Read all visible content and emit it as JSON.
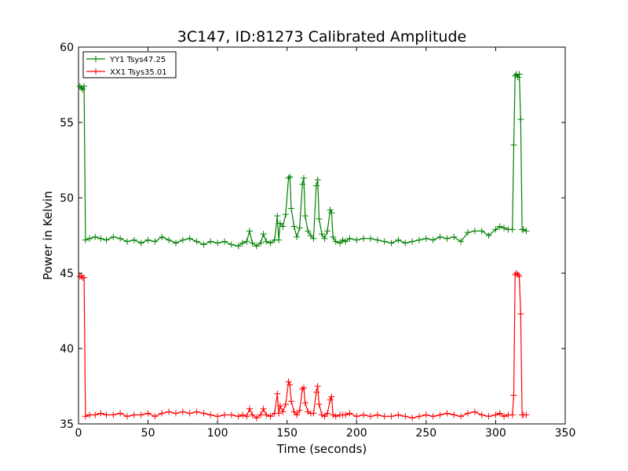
{
  "chart_data": {
    "type": "line",
    "title": "3C147, ID:81273 Calibrated Amplitude",
    "xlabel": "Time (seconds)",
    "ylabel": "Power in Kelvin",
    "xlim": [
      0,
      350
    ],
    "ylim": [
      35,
      60
    ],
    "xticks": [
      0,
      50,
      100,
      150,
      200,
      250,
      300,
      350
    ],
    "yticks": [
      35,
      40,
      45,
      50,
      55,
      60
    ],
    "grid": false,
    "legend_position": "top-left",
    "marker": "+",
    "series": [
      {
        "name": "YY1 Tsys47.25",
        "color": "#008000",
        "x": [
          1,
          2,
          3,
          4,
          5,
          8,
          12,
          16,
          20,
          25,
          30,
          35,
          40,
          45,
          50,
          55,
          60,
          65,
          70,
          75,
          80,
          85,
          90,
          95,
          100,
          105,
          110,
          115,
          118,
          121,
          123,
          125,
          128,
          131,
          133,
          135,
          138,
          141,
          143,
          144,
          145,
          147,
          149,
          151,
          152,
          153,
          155,
          157,
          159,
          161,
          162,
          163,
          165,
          167,
          169,
          171,
          172,
          173,
          175,
          177,
          179,
          181,
          182,
          183,
          185,
          188,
          190,
          192,
          195,
          200,
          205,
          210,
          215,
          220,
          225,
          230,
          235,
          240,
          245,
          250,
          255,
          260,
          265,
          270,
          275,
          280,
          285,
          290,
          295,
          300,
          303,
          306,
          309,
          312,
          313,
          314,
          315,
          316,
          317,
          318,
          319,
          320,
          322
        ],
        "y": [
          57.4,
          57.3,
          57.2,
          57.4,
          47.2,
          47.3,
          47.4,
          47.3,
          47.2,
          47.4,
          47.3,
          47.1,
          47.2,
          47.0,
          47.2,
          47.1,
          47.4,
          47.2,
          47.0,
          47.2,
          47.3,
          47.1,
          46.9,
          47.1,
          47.0,
          47.1,
          46.9,
          46.8,
          47.0,
          47.1,
          47.8,
          47.0,
          46.8,
          47.0,
          47.6,
          47.1,
          47.0,
          47.2,
          48.8,
          47.2,
          48.3,
          48.1,
          48.9,
          51.3,
          51.4,
          49.3,
          48.1,
          47.4,
          48.0,
          50.9,
          51.3,
          48.8,
          47.8,
          47.5,
          47.3,
          50.8,
          51.2,
          48.6,
          47.6,
          47.3,
          47.8,
          49.2,
          49.0,
          47.4,
          47.1,
          47.0,
          47.2,
          47.1,
          47.3,
          47.2,
          47.3,
          47.3,
          47.2,
          47.1,
          47.0,
          47.2,
          47.0,
          47.1,
          47.2,
          47.3,
          47.2,
          47.4,
          47.3,
          47.4,
          47.1,
          47.7,
          47.8,
          47.8,
          47.5,
          47.9,
          48.1,
          48.0,
          47.9,
          47.9,
          53.5,
          58.1,
          58.2,
          58.0,
          58.2,
          55.2,
          47.9,
          47.9,
          47.8
        ]
      },
      {
        "name": "XX1 Tsys35.01",
        "color": "#ff0000",
        "x": [
          1,
          2,
          3,
          4,
          5,
          8,
          12,
          16,
          20,
          25,
          30,
          35,
          40,
          45,
          50,
          55,
          60,
          65,
          70,
          75,
          80,
          85,
          90,
          95,
          100,
          105,
          110,
          115,
          118,
          121,
          123,
          125,
          128,
          131,
          133,
          135,
          138,
          141,
          143,
          144,
          145,
          147,
          149,
          151,
          152,
          153,
          155,
          157,
          159,
          161,
          162,
          163,
          165,
          167,
          169,
          171,
          172,
          173,
          175,
          177,
          179,
          181,
          182,
          183,
          185,
          188,
          190,
          192,
          195,
          200,
          205,
          210,
          215,
          220,
          225,
          230,
          235,
          240,
          245,
          250,
          255,
          260,
          265,
          270,
          275,
          280,
          285,
          290,
          295,
          300,
          303,
          306,
          309,
          312,
          313,
          314,
          315,
          316,
          317,
          318,
          319,
          320,
          322
        ],
        "y": [
          44.8,
          44.8,
          44.7,
          44.7,
          35.5,
          35.6,
          35.6,
          35.7,
          35.6,
          35.6,
          35.7,
          35.5,
          35.6,
          35.6,
          35.7,
          35.5,
          35.7,
          35.8,
          35.7,
          35.8,
          35.7,
          35.8,
          35.7,
          35.6,
          35.5,
          35.6,
          35.6,
          35.5,
          35.6,
          35.5,
          36.0,
          35.6,
          35.4,
          35.6,
          36.0,
          35.6,
          35.5,
          35.7,
          37.0,
          35.7,
          36.2,
          35.8,
          36.3,
          37.8,
          37.6,
          36.5,
          35.8,
          35.6,
          35.9,
          37.3,
          37.4,
          36.4,
          35.8,
          35.7,
          35.7,
          37.1,
          37.5,
          36.3,
          35.6,
          35.5,
          35.7,
          36.6,
          36.8,
          35.6,
          35.5,
          35.6,
          35.6,
          35.6,
          35.7,
          35.5,
          35.6,
          35.5,
          35.6,
          35.5,
          35.5,
          35.6,
          35.5,
          35.4,
          35.5,
          35.6,
          35.5,
          35.6,
          35.7,
          35.6,
          35.5,
          35.7,
          35.8,
          35.6,
          35.5,
          35.6,
          35.7,
          35.5,
          35.6,
          35.6,
          36.9,
          44.9,
          45.0,
          44.9,
          44.8,
          42.3,
          35.6,
          35.6,
          35.6
        ]
      }
    ]
  }
}
